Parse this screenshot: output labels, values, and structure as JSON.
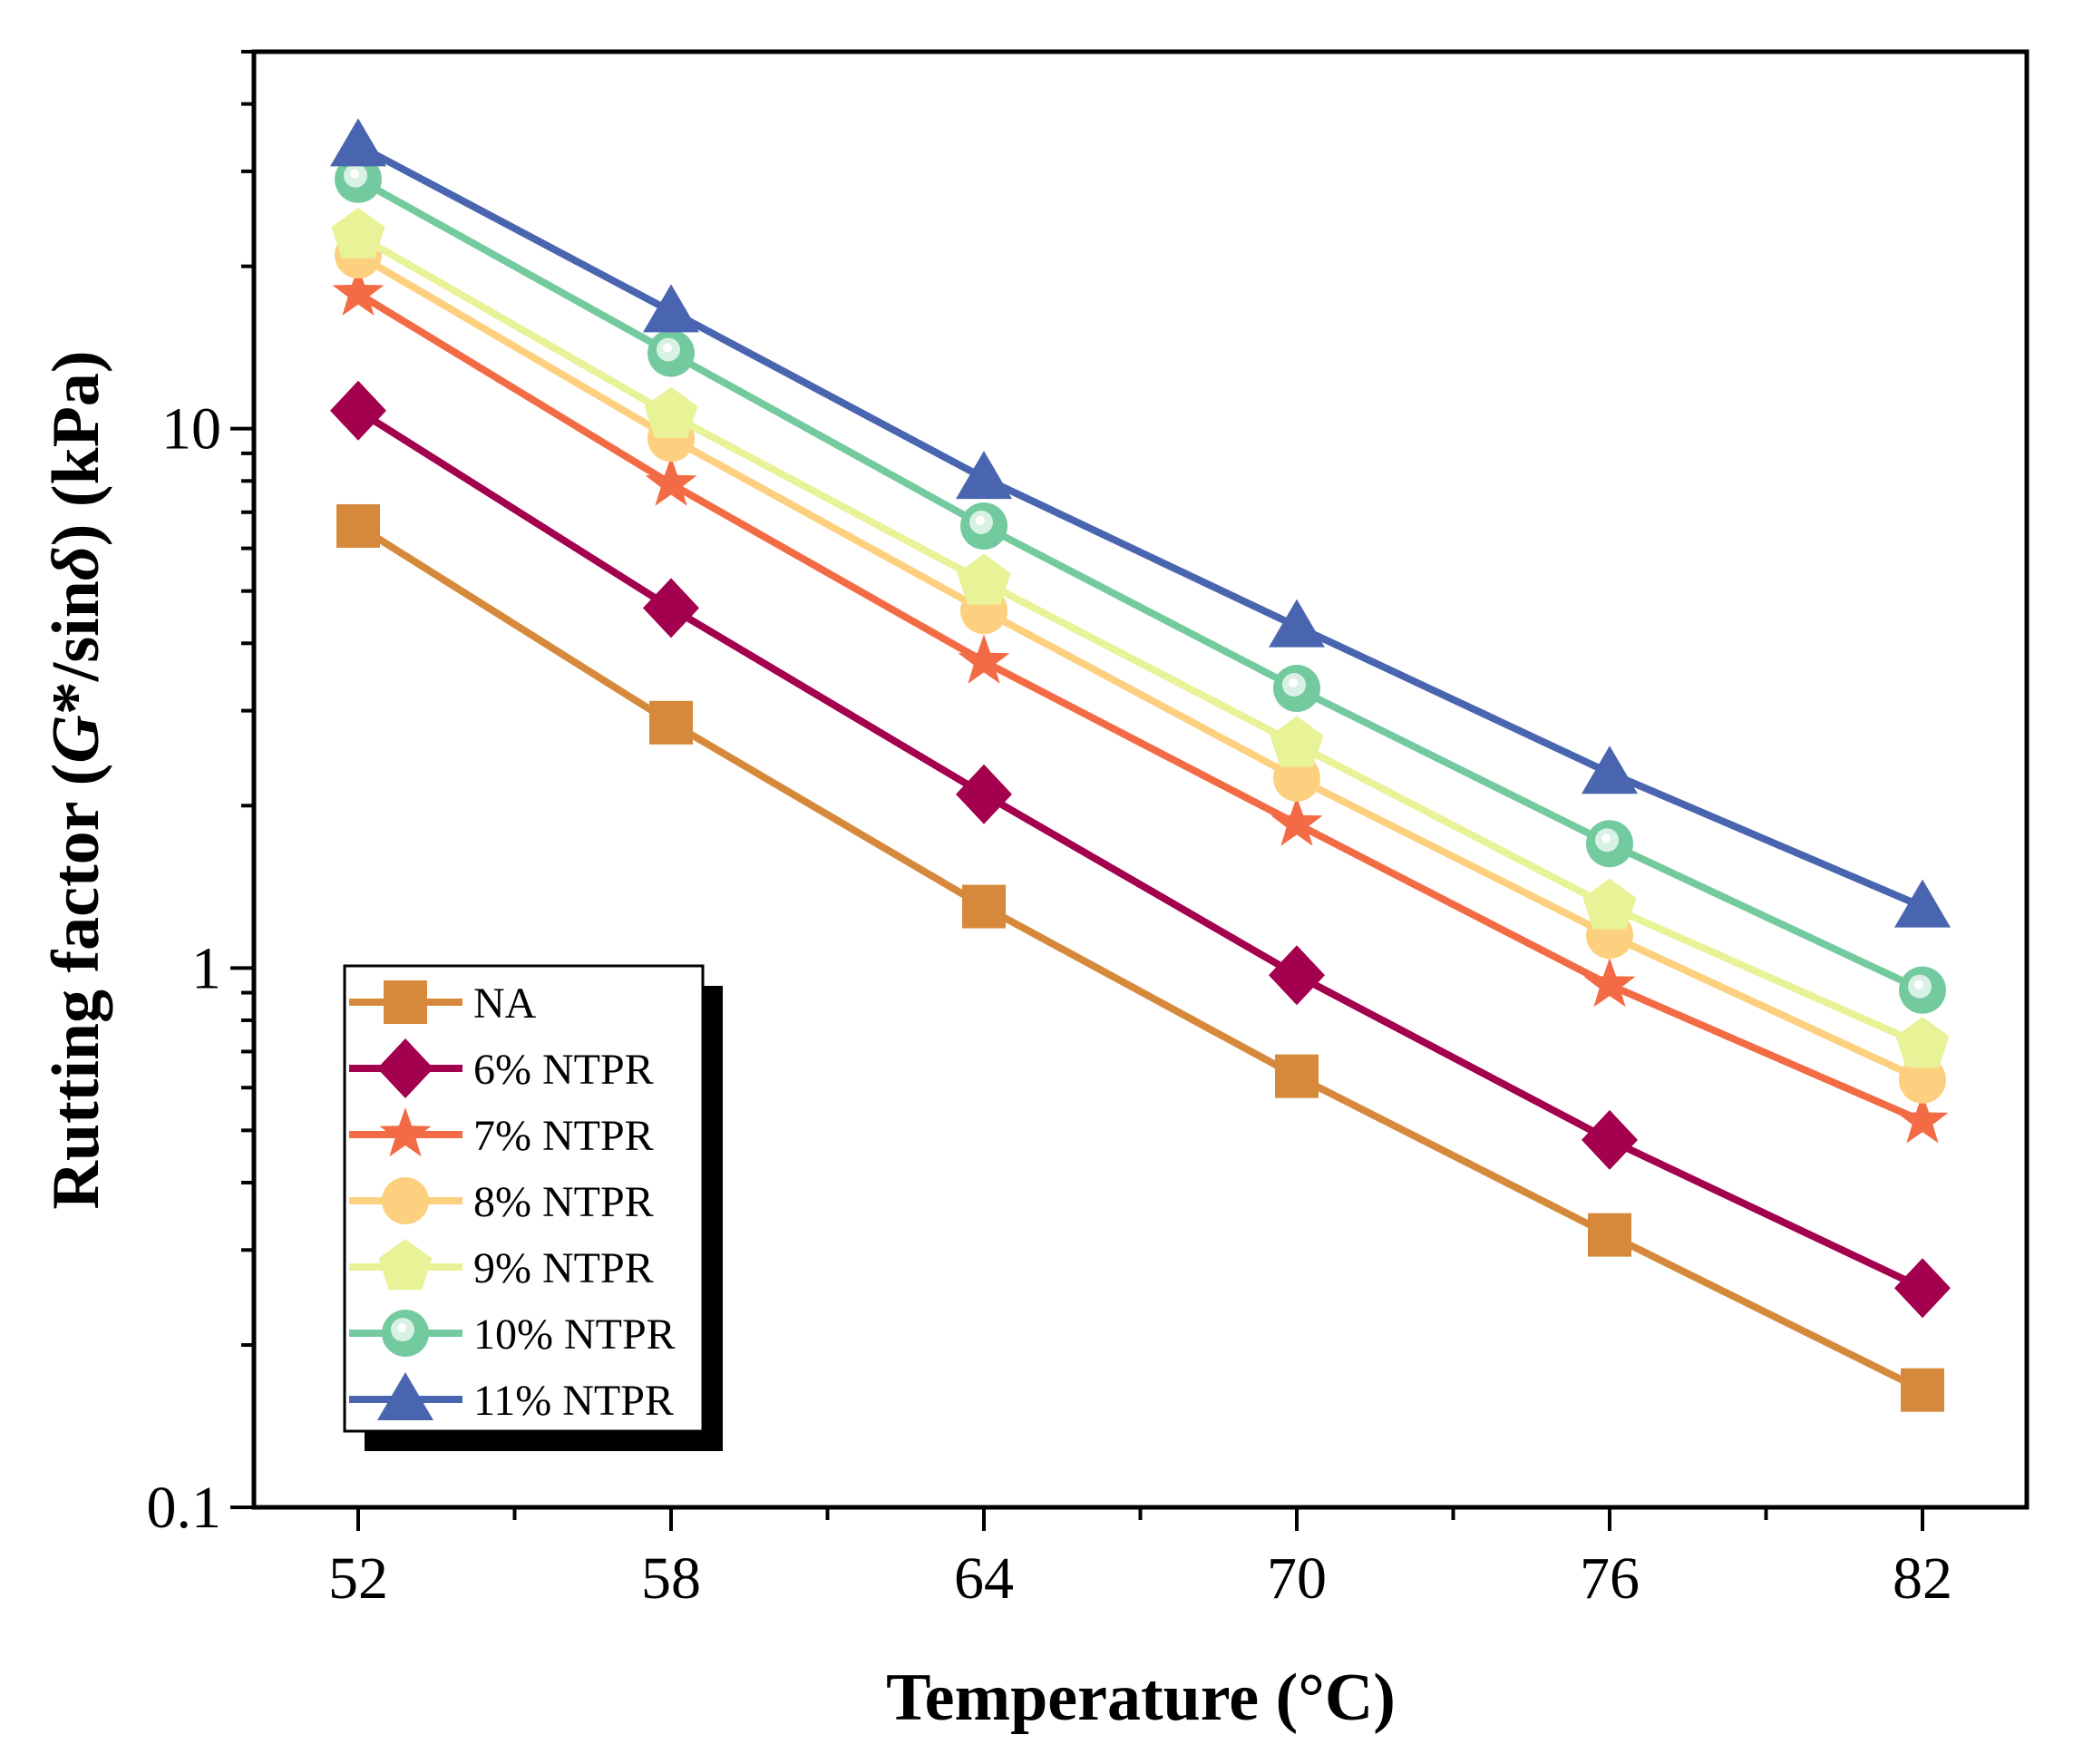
{
  "chart_data": {
    "type": "line",
    "x": [
      52,
      58,
      64,
      70,
      76,
      82
    ],
    "xlim": [
      50,
      84
    ],
    "ylim": [
      0.1,
      50
    ],
    "y_scale": "log",
    "xlabel": "Temperature (°C)",
    "ylabel_parts": [
      "Rutting factor (",
      "G",
      "*/sin",
      "δ",
      ") (kPa)"
    ],
    "x_ticks": [
      "52",
      "58",
      "64",
      "70",
      "76",
      "82"
    ],
    "y_ticks": [
      {
        "value": 0.1,
        "label": "0.1"
      },
      {
        "value": 1,
        "label": "1"
      },
      {
        "value": 10,
        "label": "10"
      }
    ],
    "legend_position": "lower-left",
    "series": [
      {
        "name": "NA",
        "marker": "square-icon",
        "color": "#D6893A",
        "values": [
          6.6,
          2.85,
          1.3,
          0.63,
          0.32,
          0.165
        ]
      },
      {
        "name": "6% NTPR",
        "marker": "diamond-icon",
        "color": "#A3004E",
        "values": [
          10.8,
          4.65,
          2.1,
          0.97,
          0.48,
          0.255
        ]
      },
      {
        "name": "7% NTPR",
        "marker": "star-icon",
        "color": "#F26B45",
        "values": [
          17.8,
          7.9,
          3.7,
          1.85,
          0.93,
          0.52
        ]
      },
      {
        "name": "8% NTPR",
        "marker": "circle-icon",
        "color": "#FDD07F",
        "values": [
          21.0,
          9.6,
          4.6,
          2.25,
          1.15,
          0.62
        ]
      },
      {
        "name": "9% NTPR",
        "marker": "pentagon-icon",
        "color": "#E8F297",
        "values": [
          22.8,
          10.6,
          5.2,
          2.6,
          1.3,
          0.72
        ]
      },
      {
        "name": "10% NTPR",
        "marker": "sphere-icon",
        "color": "#74CA9F",
        "values": [
          29.0,
          13.8,
          6.6,
          3.3,
          1.7,
          0.91
        ]
      },
      {
        "name": "11% NTPR",
        "marker": "triangle-icon",
        "color": "#4A65AF",
        "values": [
          33.5,
          16.5,
          8.1,
          4.3,
          2.3,
          1.3
        ]
      }
    ]
  }
}
